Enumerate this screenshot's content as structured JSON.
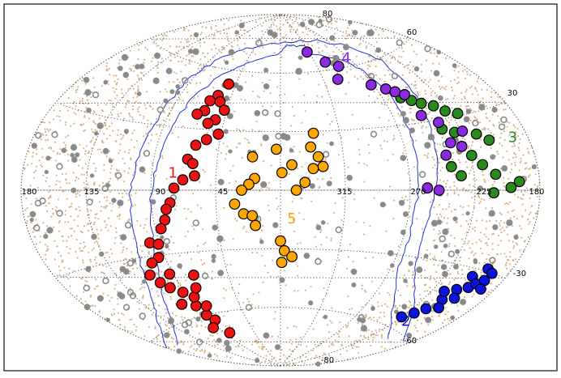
{
  "chart_data": {
    "type": "scatter",
    "projection": "aitoff",
    "title": "",
    "xlabel": "",
    "ylabel": "",
    "xlim": [
      180,
      -180
    ],
    "ylim": [
      -90,
      90
    ],
    "grid": true,
    "lon_tick_labels": [
      "180",
      "135",
      "90",
      "45",
      "315",
      "270",
      "225",
      "180"
    ],
    "lat_tick_labels": [
      "80",
      "60",
      "30",
      "-30",
      "-60",
      "-80"
    ],
    "colors": {
      "group1": "#ee1111",
      "group2": "#0a14dd",
      "group3": "#2a8a1e",
      "group4": "#8a2be2",
      "group5": "#ffa500",
      "background_points": "#d9b48a",
      "gray_points": "#8a8a8a",
      "galactic_boundary": "#2233dd",
      "grid": "#333333"
    },
    "series": [
      {
        "name": "1",
        "color": "#ee1111",
        "points": [
          {
            "lon": 52,
            "lat": 53
          },
          {
            "lon": 57,
            "lat": 47
          },
          {
            "lon": 62,
            "lat": 44
          },
          {
            "lon": 53,
            "lat": 44
          },
          {
            "lon": 63,
            "lat": 39
          },
          {
            "lon": 68,
            "lat": 37
          },
          {
            "lon": 47,
            "lat": 40
          },
          {
            "lon": 52,
            "lat": 35
          },
          {
            "lon": 57,
            "lat": 33
          },
          {
            "lon": 47,
            "lat": 28
          },
          {
            "lon": 55,
            "lat": 25
          },
          {
            "lon": 62,
            "lat": 22
          },
          {
            "lon": 66,
            "lat": 15
          },
          {
            "lon": 62,
            "lat": 13
          },
          {
            "lon": 60,
            "lat": 7
          },
          {
            "lon": 68,
            "lat": 5
          },
          {
            "lon": 74,
            "lat": 1
          },
          {
            "lon": 77,
            "lat": -6
          },
          {
            "lon": 80,
            "lat": -9
          },
          {
            "lon": 82,
            "lat": -14
          },
          {
            "lon": 86,
            "lat": -18
          },
          {
            "lon": 97,
            "lat": -24
          },
          {
            "lon": 91,
            "lat": -25
          },
          {
            "lon": 95,
            "lat": -31
          },
          {
            "lon": 102,
            "lat": -33
          },
          {
            "lon": 109,
            "lat": -38
          },
          {
            "lon": 105,
            "lat": -42
          },
          {
            "lon": 93,
            "lat": -39
          },
          {
            "lon": 100,
            "lat": -45
          },
          {
            "lon": 92,
            "lat": -48
          },
          {
            "lon": 102,
            "lat": -53
          },
          {
            "lon": 88,
            "lat": -60
          },
          {
            "lon": 84,
            "lat": -63
          },
          {
            "lon": 96,
            "lat": -66
          },
          {
            "lon": 83,
            "lat": -70
          },
          {
            "lon": 80,
            "lat": -56
          },
          {
            "lon": 90,
            "lat": -55
          },
          {
            "lon": 85,
            "lat": -51
          },
          {
            "lon": 78,
            "lat": -47
          },
          {
            "lon": 74,
            "lat": -41
          }
        ]
      },
      {
        "name": "2",
        "color": "#0a14dd",
        "points": [
          {
            "lon": -156,
            "lat": -33
          },
          {
            "lon": -160,
            "lat": -37
          },
          {
            "lon": -163,
            "lat": -35
          },
          {
            "lon": -167,
            "lat": -33
          },
          {
            "lon": -163,
            "lat": -29
          },
          {
            "lon": -153,
            "lat": -39
          },
          {
            "lon": -150,
            "lat": -44
          },
          {
            "lon": -146,
            "lat": -49
          },
          {
            "lon": -141,
            "lat": -52
          },
          {
            "lon": -135,
            "lat": -55
          },
          {
            "lon": -158,
            "lat": -42
          },
          {
            "lon": -155,
            "lat": -47
          },
          {
            "lon": -170,
            "lat": -36
          },
          {
            "lon": -168,
            "lat": -30
          },
          {
            "lon": -145,
            "lat": -41
          }
        ]
      },
      {
        "name": "3",
        "color": "#2a8a1e",
        "points": [
          {
            "lon": -105,
            "lat": 42
          },
          {
            "lon": -112,
            "lat": 40
          },
          {
            "lon": -118,
            "lat": 38
          },
          {
            "lon": -126,
            "lat": 36
          },
          {
            "lon": -132,
            "lat": 33
          },
          {
            "lon": -140,
            "lat": 31
          },
          {
            "lon": -122,
            "lat": 26
          },
          {
            "lon": -130,
            "lat": 24
          },
          {
            "lon": -145,
            "lat": 22
          },
          {
            "lon": -152,
            "lat": 19
          },
          {
            "lon": -136,
            "lat": 14
          },
          {
            "lon": -142,
            "lat": 10
          },
          {
            "lon": -150,
            "lat": 6
          },
          {
            "lon": -160,
            "lat": 1
          },
          {
            "lon": -166,
            "lat": 3
          },
          {
            "lon": -148,
            "lat": -1
          },
          {
            "lon": -120,
            "lat": 10
          },
          {
            "lon": -126,
            "lat": 6
          }
        ]
      },
      {
        "name": "4",
        "color": "#8a2be2",
        "points": [
          {
            "lon": -42,
            "lat": 70
          },
          {
            "lon": -58,
            "lat": 64
          },
          {
            "lon": -70,
            "lat": 61
          },
          {
            "lon": -60,
            "lat": 55
          },
          {
            "lon": -88,
            "lat": 50
          },
          {
            "lon": -98,
            "lat": 47
          },
          {
            "lon": -104,
            "lat": 45
          },
          {
            "lon": -110,
            "lat": 43
          },
          {
            "lon": -112,
            "lat": 33
          },
          {
            "lon": -122,
            "lat": 29
          },
          {
            "lon": -124,
            "lat": 20
          },
          {
            "lon": -136,
            "lat": 24
          },
          {
            "lon": -131,
            "lat": 18
          },
          {
            "lon": -118,
            "lat": 15
          },
          {
            "lon": -102,
            "lat": 1
          },
          {
            "lon": -110,
            "lat": 0
          }
        ]
      },
      {
        "name": "5",
        "color": "#ffa500",
        "points": [
          {
            "lon": -25,
            "lat": 29
          },
          {
            "lon": -22,
            "lat": 22
          },
          {
            "lon": -27,
            "lat": 17
          },
          {
            "lon": -30,
            "lat": 12
          },
          {
            "lon": -23,
            "lat": 11
          },
          {
            "lon": -8,
            "lat": 13
          },
          {
            "lon": -1,
            "lat": 9
          },
          {
            "lon": 3,
            "lat": 21
          },
          {
            "lon": 20,
            "lat": 17
          },
          {
            "lon": 18,
            "lat": 6
          },
          {
            "lon": 22,
            "lat": 3
          },
          {
            "lon": 27,
            "lat": 0
          },
          {
            "lon": 32,
            "lat": -7
          },
          {
            "lon": 26,
            "lat": -12
          },
          {
            "lon": 20,
            "lat": -13
          },
          {
            "lon": 18,
            "lat": -18
          },
          {
            "lon": 0,
            "lat": -26
          },
          {
            "lon": -3,
            "lat": -31
          },
          {
            "lon": -9,
            "lat": -34
          },
          {
            "lon": -1,
            "lat": -37
          },
          {
            "lon": -17,
            "lat": 4
          },
          {
            "lon": -11,
            "lat": 0
          }
        ]
      }
    ],
    "annotations": [
      {
        "text": "1",
        "lon": 75,
        "lat": 6,
        "color": "#ee1111"
      },
      {
        "text": "2",
        "lon": -150,
        "lat": -57,
        "color": "#0a14dd"
      },
      {
        "text": "3",
        "lon": -168,
        "lat": 17,
        "color": "#2a8a1e"
      },
      {
        "text": "4",
        "lon": -82,
        "lat": 62,
        "color": "#8a2be2"
      },
      {
        "text": "5",
        "lon": -8,
        "lat": -17,
        "color": "#ffa500"
      }
    ]
  }
}
